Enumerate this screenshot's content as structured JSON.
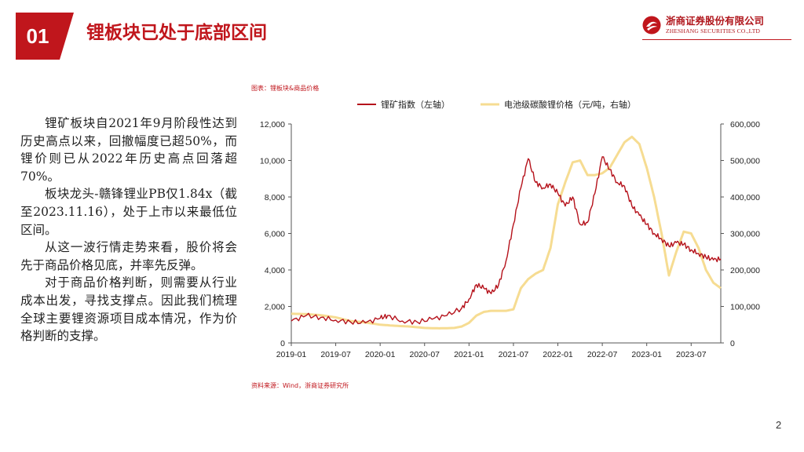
{
  "header": {
    "section_number": "01",
    "title": "锂板块已处于底部区间",
    "company_cn": "浙商证券股份有限公司",
    "company_en": "ZHESHANG SECURITIES CO.,LTD",
    "brand_color": "#c0161c"
  },
  "body": {
    "paragraphs": [
      "锂矿板块自2021年9月阶段性达到历史高点以来，回撤幅度已超50%，而锂价则已从2022年历史高点回落超70%。",
      "板块龙头-赣锋锂业PB仅1.84x（截至2023.11.16），处于上市以来最低位区间。",
      "从这一波行情走势来看，股价将会先于商品价格见底，并率先反弹。",
      "对于商品价格判断，则需要从行业成本出发，寻找支撑点。因此我们梳理全球主要锂资源项目成本情况，作为价格判断的支撑。"
    ]
  },
  "chart_caption": "图表：锂板块&商品价格",
  "chart_source": "资料来源：Wind，浙商证券研究所",
  "page_number": "2",
  "chart_data": {
    "type": "line",
    "title": "",
    "x_tick_labels": [
      "2019-01",
      "2019-07",
      "2020-01",
      "2020-07",
      "2021-01",
      "2021-07",
      "2022-01",
      "2022-07",
      "2023-01",
      "2023-07"
    ],
    "x_range": [
      "2019-01",
      "2023-11"
    ],
    "y_left": {
      "range": [
        0,
        12000
      ],
      "ticks": [
        "0",
        "2,000",
        "4,000",
        "6,000",
        "8,000",
        "10,000",
        "12,000"
      ]
    },
    "y_right": {
      "range": [
        0,
        600000
      ],
      "ticks": [
        "0",
        "100,000",
        "200,000",
        "300,000",
        "400,000",
        "500,000",
        "600,000"
      ]
    },
    "legend_position": "top",
    "grid": false,
    "series": [
      {
        "name": "锂矿指数（左轴）",
        "axis": "left",
        "color": "#b5121b",
        "points": [
          [
            "2019-01",
            1200
          ],
          [
            "2019-03",
            1500
          ],
          [
            "2019-05",
            1400
          ],
          [
            "2019-07",
            1250
          ],
          [
            "2019-09",
            1150
          ],
          [
            "2019-11",
            1100
          ],
          [
            "2020-01",
            1350
          ],
          [
            "2020-02",
            1500
          ],
          [
            "2020-04",
            1200
          ],
          [
            "2020-06",
            1150
          ],
          [
            "2020-08",
            1300
          ],
          [
            "2020-10",
            1500
          ],
          [
            "2020-12",
            1900
          ],
          [
            "2021-01",
            2400
          ],
          [
            "2021-02",
            3200
          ],
          [
            "2021-03",
            3000
          ],
          [
            "2021-04",
            2700
          ],
          [
            "2021-05",
            3200
          ],
          [
            "2021-06",
            4500
          ],
          [
            "2021-07",
            6500
          ],
          [
            "2021-08",
            8500
          ],
          [
            "2021-09",
            10100
          ],
          [
            "2021-10",
            8800
          ],
          [
            "2021-11",
            8500
          ],
          [
            "2021-12",
            8700
          ],
          [
            "2022-01",
            8200
          ],
          [
            "2022-02",
            7500
          ],
          [
            "2022-03",
            8000
          ],
          [
            "2022-04",
            6500
          ],
          [
            "2022-05",
            6600
          ],
          [
            "2022-06",
            8200
          ],
          [
            "2022-07",
            10200
          ],
          [
            "2022-08",
            9500
          ],
          [
            "2022-09",
            8800
          ],
          [
            "2022-10",
            8600
          ],
          [
            "2022-11",
            7500
          ],
          [
            "2022-12",
            7000
          ],
          [
            "2023-01",
            6500
          ],
          [
            "2023-02",
            6000
          ],
          [
            "2023-03",
            5700
          ],
          [
            "2023-04",
            5300
          ],
          [
            "2023-05",
            5500
          ],
          [
            "2023-06",
            5400
          ],
          [
            "2023-07",
            5100
          ],
          [
            "2023-08",
            4900
          ],
          [
            "2023-09",
            4700
          ],
          [
            "2023-10",
            4550
          ],
          [
            "2023-11",
            4600
          ]
        ]
      },
      {
        "name": "电池级碳酸锂价格（元/吨，右轴）",
        "axis": "right",
        "color": "#f6dc92",
        "points": [
          [
            "2019-01",
            80000
          ],
          [
            "2019-03",
            79000
          ],
          [
            "2019-05",
            76000
          ],
          [
            "2019-07",
            70000
          ],
          [
            "2019-09",
            60000
          ],
          [
            "2019-11",
            56000
          ],
          [
            "2020-01",
            50000
          ],
          [
            "2020-03",
            47000
          ],
          [
            "2020-05",
            45000
          ],
          [
            "2020-07",
            41000
          ],
          [
            "2020-09",
            40000
          ],
          [
            "2020-11",
            41000
          ],
          [
            "2020-12",
            45000
          ],
          [
            "2021-01",
            55000
          ],
          [
            "2021-02",
            75000
          ],
          [
            "2021-03",
            85000
          ],
          [
            "2021-04",
            88000
          ],
          [
            "2021-06",
            88000
          ],
          [
            "2021-07",
            92000
          ],
          [
            "2021-08",
            150000
          ],
          [
            "2021-09",
            175000
          ],
          [
            "2021-10",
            190000
          ],
          [
            "2021-11",
            200000
          ],
          [
            "2021-12",
            260000
          ],
          [
            "2022-01",
            380000
          ],
          [
            "2022-02",
            440000
          ],
          [
            "2022-03",
            495000
          ],
          [
            "2022-04",
            500000
          ],
          [
            "2022-05",
            460000
          ],
          [
            "2022-06",
            460000
          ],
          [
            "2022-07",
            465000
          ],
          [
            "2022-08",
            480000
          ],
          [
            "2022-09",
            515000
          ],
          [
            "2022-10",
            550000
          ],
          [
            "2022-11",
            565000
          ],
          [
            "2022-12",
            545000
          ],
          [
            "2023-01",
            480000
          ],
          [
            "2023-02",
            400000
          ],
          [
            "2023-03",
            300000
          ],
          [
            "2023-04",
            185000
          ],
          [
            "2023-05",
            250000
          ],
          [
            "2023-06",
            305000
          ],
          [
            "2023-07",
            300000
          ],
          [
            "2023-08",
            260000
          ],
          [
            "2023-09",
            200000
          ],
          [
            "2023-10",
            165000
          ],
          [
            "2023-11",
            150000
          ]
        ]
      }
    ]
  }
}
